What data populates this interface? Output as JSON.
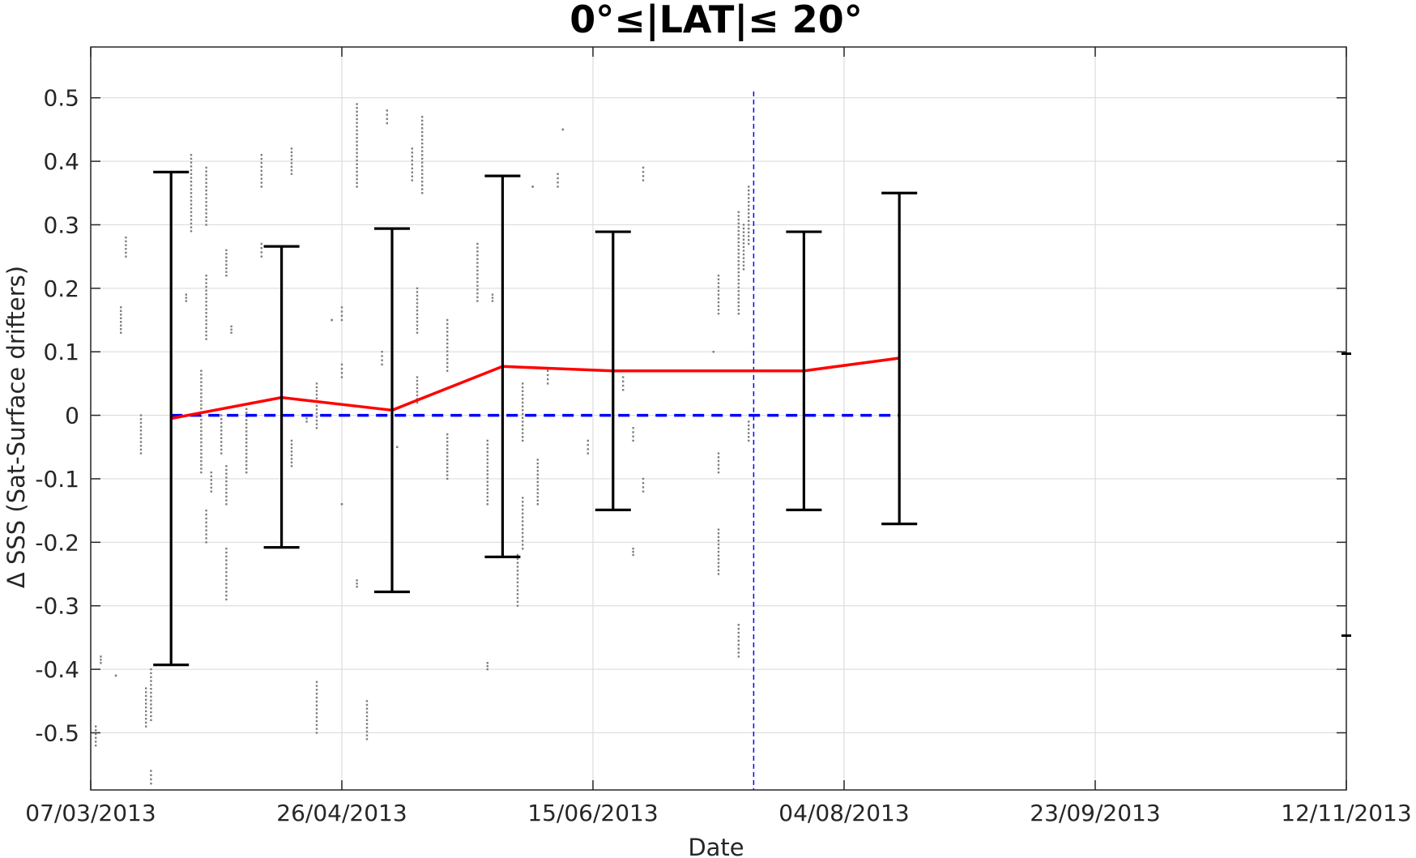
{
  "chart_data": {
    "type": "scatter",
    "title": "0°≤|LAT|≤ 20°",
    "xlabel": "Date",
    "ylabel": "Δ SSS (Sat-Surface drifters)",
    "x_tick_labels": [
      "07/03/2013",
      "26/04/2013",
      "15/06/2013",
      "04/08/2013",
      "23/09/2013",
      "12/11/2013"
    ],
    "y_tick_labels": [
      "0.5",
      "0.4",
      "0.3",
      "0.2",
      "0.1",
      "0",
      "-0.1",
      "-0.2",
      "-0.3",
      "-0.4",
      "-0.5"
    ],
    "xlim": [
      "2013-03-07",
      "2013-11-12"
    ],
    "ylim": [
      -0.59,
      0.58
    ],
    "grid": true,
    "colors": {
      "points": "#7f7f7f",
      "mean_line": "#ff0000",
      "zero_line": "#0000ff",
      "vline": "#0000ff",
      "errorbar": "#000000",
      "grid": "#dcdcdc",
      "axis": "#262626"
    },
    "vertical_line": {
      "date": "2013-07-17",
      "y_top": 0.51
    },
    "zero_line": {
      "from": "2013-03-23",
      "to": "2013-08-15",
      "y": 0
    },
    "mean_series": {
      "dates": [
        "2013-03-23",
        "2013-04-14",
        "2013-05-06",
        "2013-05-28",
        "2013-06-19",
        "2013-07-27",
        "2013-08-15"
      ],
      "values": [
        -0.005,
        0.028,
        0.008,
        0.077,
        0.07,
        0.07,
        0.09
      ]
    },
    "errorbars": [
      {
        "date": "2013-03-23",
        "mean": -0.005,
        "low": -0.393,
        "high": 0.383
      },
      {
        "date": "2013-04-14",
        "mean": 0.028,
        "low": -0.208,
        "high": 0.266
      },
      {
        "date": "2013-05-06",
        "mean": 0.008,
        "low": -0.278,
        "high": 0.294
      },
      {
        "date": "2013-05-28",
        "mean": 0.077,
        "low": -0.223,
        "high": 0.377
      },
      {
        "date": "2013-06-19",
        "mean": 0.07,
        "low": -0.149,
        "high": 0.289
      },
      {
        "date": "2013-07-27",
        "mean": 0.07,
        "low": -0.149,
        "high": 0.289
      },
      {
        "date": "2013-08-15",
        "mean": 0.09,
        "low": -0.171,
        "high": 0.35
      }
    ],
    "right_edge_marks": [
      0.097,
      -0.347
    ],
    "point_clusters": [
      {
        "date": "2013-03-08",
        "y": [
          -0.49,
          -0.52
        ]
      },
      {
        "date": "2013-03-09",
        "y": [
          -0.38,
          -0.39
        ]
      },
      {
        "date": "2013-03-12",
        "y": [
          -0.41,
          -0.41
        ]
      },
      {
        "date": "2013-03-13",
        "y": [
          0.13,
          0.17
        ]
      },
      {
        "date": "2013-03-14",
        "y": [
          0.25,
          0.28
        ]
      },
      {
        "date": "2013-03-17",
        "y": [
          -0.06,
          0.0
        ]
      },
      {
        "date": "2013-03-18",
        "y": [
          -0.49,
          -0.43
        ]
      },
      {
        "date": "2013-03-19",
        "y": [
          -0.48,
          -0.4
        ]
      },
      {
        "date": "2013-03-19",
        "y": [
          -0.58,
          -0.56
        ]
      },
      {
        "date": "2013-03-26",
        "y": [
          0.18,
          0.19
        ]
      },
      {
        "date": "2013-03-27",
        "y": [
          0.29,
          0.41
        ]
      },
      {
        "date": "2013-03-29",
        "y": [
          -0.09,
          0.07
        ]
      },
      {
        "date": "2013-03-30",
        "y": [
          0.12,
          0.22
        ]
      },
      {
        "date": "2013-03-30",
        "y": [
          0.3,
          0.39
        ]
      },
      {
        "date": "2013-03-30",
        "y": [
          -0.2,
          -0.15
        ]
      },
      {
        "date": "2013-03-31",
        "y": [
          -0.12,
          -0.09
        ]
      },
      {
        "date": "2013-04-02",
        "y": [
          -0.06,
          0.0
        ]
      },
      {
        "date": "2013-04-03",
        "y": [
          -0.14,
          -0.08
        ]
      },
      {
        "date": "2013-04-03",
        "y": [
          -0.29,
          -0.21
        ]
      },
      {
        "date": "2013-04-03",
        "y": [
          0.22,
          0.26
        ]
      },
      {
        "date": "2013-04-04",
        "y": [
          0.13,
          0.14
        ]
      },
      {
        "date": "2013-04-07",
        "y": [
          -0.09,
          0.01
        ]
      },
      {
        "date": "2013-04-10",
        "y": [
          0.36,
          0.41
        ]
      },
      {
        "date": "2013-04-10",
        "y": [
          0.25,
          0.27
        ]
      },
      {
        "date": "2013-04-14",
        "y": [
          0.14,
          0.18
        ]
      },
      {
        "date": "2013-04-14",
        "y": [
          -0.05,
          0.03
        ]
      },
      {
        "date": "2013-04-16",
        "y": [
          0.38,
          0.42
        ]
      },
      {
        "date": "2013-04-16",
        "y": [
          -0.08,
          -0.04
        ]
      },
      {
        "date": "2013-04-19",
        "y": [
          -0.01,
          0.0
        ]
      },
      {
        "date": "2013-04-21",
        "y": [
          -0.02,
          0.05
        ]
      },
      {
        "date": "2013-04-21",
        "y": [
          -0.5,
          -0.42
        ]
      },
      {
        "date": "2013-04-24",
        "y": [
          0.15,
          0.15
        ]
      },
      {
        "date": "2013-04-26",
        "y": [
          0.06,
          0.08
        ]
      },
      {
        "date": "2013-04-26",
        "y": [
          0.15,
          0.17
        ]
      },
      {
        "date": "2013-04-26",
        "y": [
          -0.14,
          -0.14
        ]
      },
      {
        "date": "2013-04-29",
        "y": [
          0.36,
          0.49
        ]
      },
      {
        "date": "2013-04-29",
        "y": [
          -0.27,
          -0.26
        ]
      },
      {
        "date": "2013-05-01",
        "y": [
          -0.51,
          -0.45
        ]
      },
      {
        "date": "2013-05-04",
        "y": [
          0.08,
          0.1
        ]
      },
      {
        "date": "2013-05-05",
        "y": [
          0.46,
          0.48
        ]
      },
      {
        "date": "2013-05-07",
        "y": [
          -0.05,
          -0.05
        ]
      },
      {
        "date": "2013-05-10",
        "y": [
          0.37,
          0.42
        ]
      },
      {
        "date": "2013-05-11",
        "y": [
          0.13,
          0.2
        ]
      },
      {
        "date": "2013-05-11",
        "y": [
          0.02,
          0.06
        ]
      },
      {
        "date": "2013-05-12",
        "y": [
          0.35,
          0.47
        ]
      },
      {
        "date": "2013-05-17",
        "y": [
          0.07,
          0.15
        ]
      },
      {
        "date": "2013-05-17",
        "y": [
          -0.1,
          -0.03
        ]
      },
      {
        "date": "2013-05-23",
        "y": [
          0.18,
          0.27
        ]
      },
      {
        "date": "2013-05-25",
        "y": [
          -0.14,
          -0.04
        ]
      },
      {
        "date": "2013-05-25",
        "y": [
          -0.4,
          -0.39
        ]
      },
      {
        "date": "2013-05-26",
        "y": [
          0.18,
          0.19
        ]
      },
      {
        "date": "2013-05-31",
        "y": [
          -0.3,
          -0.22
        ]
      },
      {
        "date": "2013-06-01",
        "y": [
          -0.21,
          -0.13
        ]
      },
      {
        "date": "2013-06-01",
        "y": [
          -0.04,
          0.05
        ]
      },
      {
        "date": "2013-06-03",
        "y": [
          0.36,
          0.36
        ]
      },
      {
        "date": "2013-06-04",
        "y": [
          -0.14,
          -0.07
        ]
      },
      {
        "date": "2013-06-06",
        "y": [
          0.05,
          0.07
        ]
      },
      {
        "date": "2013-06-08",
        "y": [
          0.36,
          0.38
        ]
      },
      {
        "date": "2013-06-09",
        "y": [
          0.45,
          0.45
        ]
      },
      {
        "date": "2013-06-14",
        "y": [
          -0.06,
          -0.04
        ]
      },
      {
        "date": "2013-06-21",
        "y": [
          0.04,
          0.06
        ]
      },
      {
        "date": "2013-06-23",
        "y": [
          -0.04,
          -0.02
        ]
      },
      {
        "date": "2013-06-23",
        "y": [
          -0.22,
          -0.21
        ]
      },
      {
        "date": "2013-06-25",
        "y": [
          0.37,
          0.39
        ]
      },
      {
        "date": "2013-06-25",
        "y": [
          -0.12,
          -0.1
        ]
      },
      {
        "date": "2013-07-09",
        "y": [
          0.1,
          0.1
        ]
      },
      {
        "date": "2013-07-10",
        "y": [
          -0.09,
          -0.06
        ]
      },
      {
        "date": "2013-07-10",
        "y": [
          0.16,
          0.22
        ]
      },
      {
        "date": "2013-07-10",
        "y": [
          -0.25,
          -0.18
        ]
      },
      {
        "date": "2013-07-14",
        "y": [
          0.16,
          0.32
        ]
      },
      {
        "date": "2013-07-14",
        "y": [
          -0.38,
          -0.33
        ]
      },
      {
        "date": "2013-07-15",
        "y": [
          0.23,
          0.3
        ]
      },
      {
        "date": "2013-07-16",
        "y": [
          0.27,
          0.36
        ]
      },
      {
        "date": "2013-07-16",
        "y": [
          -0.04,
          -0.01
        ]
      }
    ]
  }
}
